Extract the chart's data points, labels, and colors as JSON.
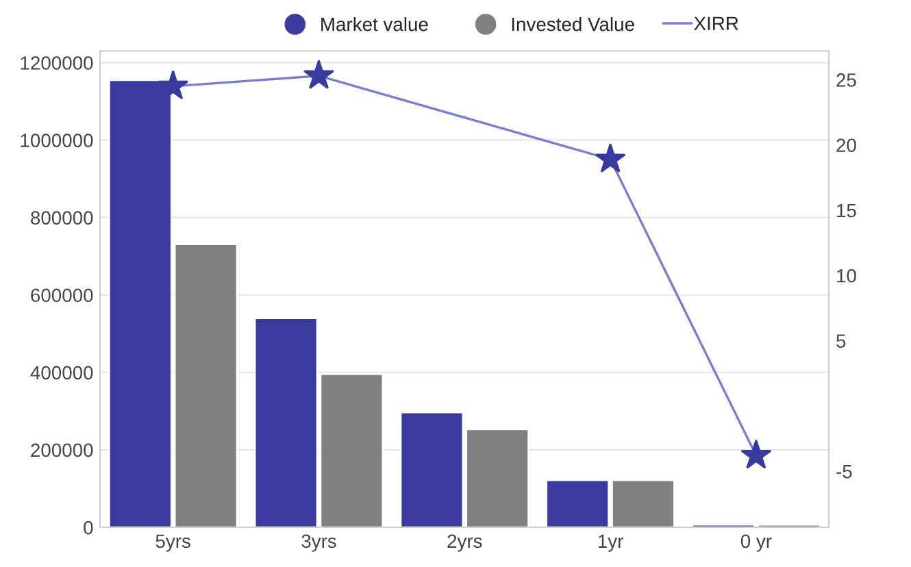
{
  "chart_data": {
    "type": "bar",
    "categories": [
      "5yrs",
      "3yrs",
      "2yrs",
      "1yr",
      "0 yr"
    ],
    "series": [
      {
        "name": "Market value",
        "color": "#3a3a9e",
        "values": [
          1155000,
          540000,
          297000,
          122000,
          7000
        ]
      },
      {
        "name": "Invested Value",
        "color": "#808080",
        "values": [
          731000,
          396000,
          253000,
          122000,
          7000
        ]
      },
      {
        "name": "XIRR",
        "type": "line",
        "axis": "y2",
        "color": "#7b7bd6",
        "marker": "star",
        "values": [
          24.5,
          25.3,
          null,
          18.9,
          -3.8
        ]
      }
    ],
    "ylim": [
      0,
      1230000
    ],
    "yticks": [
      0,
      200000,
      400000,
      600000,
      800000,
      1000000,
      1200000
    ],
    "y2lim": [
      -9.3,
      27.2
    ],
    "y2ticks": [
      25,
      20,
      15,
      10,
      5,
      -5
    ],
    "grid": "y",
    "legend": "top"
  }
}
